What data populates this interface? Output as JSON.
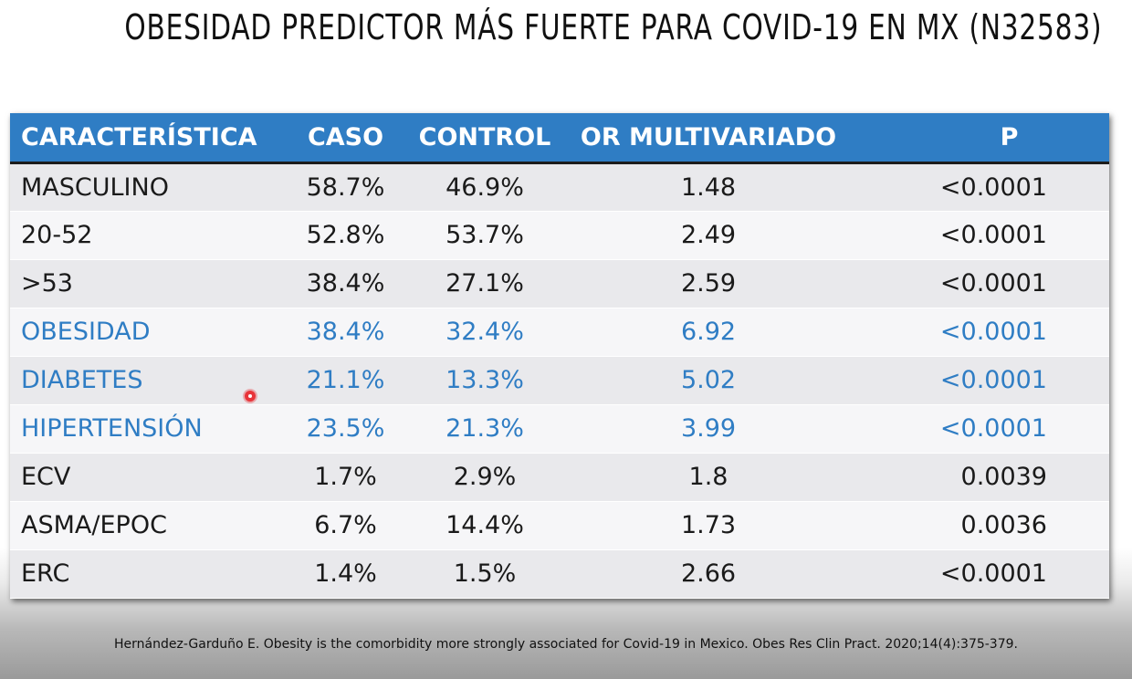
{
  "slide": {
    "title": "OBESIDAD PREDICTOR MÁS FUERTE PARA COVID-19 EN MX (N32583)",
    "citation": "Hernández-Garduño E. Obesity is the comorbidity more strongly associated for Covid-19 in Mexico. Obes Res Clin Pract. 2020;14(4):375-379."
  },
  "table": {
    "headers": [
      "CARACTERÍSTICA",
      "CASO",
      "CONTROL",
      "OR MULTIVARIADO",
      "P"
    ],
    "rows": [
      [
        "MASCULINO",
        "58.7%",
        "46.9%",
        "1.48",
        "<0.0001"
      ],
      [
        "20-52",
        "52.8%",
        "53.7%",
        "2.49",
        "<0.0001"
      ],
      [
        ">53",
        "38.4%",
        "27.1%",
        "2.59",
        "<0.0001"
      ],
      [
        "OBESIDAD",
        "38.4%",
        "32.4%",
        "6.92",
        "<0.0001"
      ],
      [
        "DIABETES",
        "21.1%",
        "13.3%",
        "5.02",
        "<0.0001"
      ],
      [
        "HIPERTENSIÓN",
        "23.5%",
        "21.3%",
        "3.99",
        "<0.0001"
      ],
      [
        "ECV",
        "1.7%",
        "2.9%",
        "1.8",
        "0.0039"
      ],
      [
        "ASMA/EPOC",
        "6.7%",
        "14.4%",
        "1.73",
        "0.0036"
      ],
      [
        "ERC",
        "1.4%",
        "1.5%",
        "2.66",
        "<0.0001"
      ]
    ]
  },
  "colors": {
    "header_bg": "#2f7dc4",
    "highlight_text": "#2f7dc4",
    "row_odd": "#e9e9ec",
    "row_even": "#f6f6f8"
  }
}
